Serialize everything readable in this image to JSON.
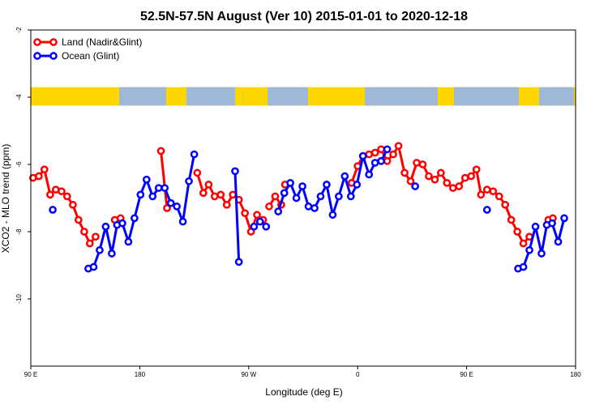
{
  "chart_data": {
    "type": "line",
    "title": "52.5N-57.5N August (Ver 10)   2015-01-01 to 2020-12-18",
    "xlabel": "Longitude (deg E)",
    "ylabel": "XCO2 - MLO trend (ppm)",
    "xlim": [
      90,
      450
    ],
    "ylim": [
      -12,
      -2
    ],
    "x_ticks": [
      {
        "value": 90,
        "label": "90 E"
      },
      {
        "value": 162,
        "label": "180"
      },
      {
        "value": 234,
        "label": "90 W"
      },
      {
        "value": 306,
        "label": "0"
      },
      {
        "value": 378,
        "label": "90 E"
      },
      {
        "value": 450,
        "label": "180"
      }
    ],
    "y_ticks": [
      {
        "value": -2,
        "label": "-2"
      },
      {
        "value": -4,
        "label": "-4"
      },
      {
        "value": -6,
        "label": "-6"
      },
      {
        "value": -8,
        "label": "-8"
      },
      {
        "value": -10,
        "label": "-10"
      }
    ],
    "grid": false,
    "legend_position": "top-left",
    "land_ocean_band": {
      "y_range": [
        -4.25,
        -3.7
      ],
      "land_color": "#ffd700",
      "ocean_color": "#a0b8d8"
    },
    "series": [
      {
        "name": "Land (Nadir&Glint)",
        "color": "#ff0000",
        "segments": [
          [
            [
              91.5,
              -6.4
            ],
            [
              95.3,
              -6.35
            ],
            [
              99,
              -6.15
            ],
            [
              102.8,
              -6.9
            ],
            [
              106.5,
              -6.75
            ],
            [
              110.3,
              -6.8
            ],
            [
              114,
              -6.95
            ],
            [
              117.8,
              -7.2
            ],
            [
              121.5,
              -7.65
            ],
            [
              125.3,
              -8.0
            ],
            [
              129,
              -8.35
            ],
            [
              132.8,
              -8.15
            ]
          ],
          [
            [
              145.5,
              -7.65
            ],
            [
              149.3,
              -7.6
            ]
          ],
          [
            [
              176,
              -5.6
            ],
            [
              180,
              -7.3
            ]
          ],
          [
            [
              200,
              -6.25
            ],
            [
              204,
              -6.85
            ],
            [
              207.5,
              -6.6
            ],
            [
              211.5,
              -6.95
            ],
            [
              215.5,
              -6.9
            ],
            [
              219.5,
              -7.2
            ],
            [
              223.5,
              -6.9
            ],
            [
              227.5,
              -7.05
            ],
            [
              231.5,
              -7.45
            ],
            [
              235.5,
              -8.0
            ],
            [
              239.5,
              -7.5
            ],
            [
              243.5,
              -7.65
            ]
          ],
          [
            [
              247.5,
              -7.25
            ],
            [
              251.5,
              -6.95
            ],
            [
              255.5,
              -7.2
            ]
          ],
          [
            [
              258,
              -6.6
            ]
          ],
          [
            [
              302,
              -6.55
            ],
            [
              306,
              -6.05
            ],
            [
              309.5,
              -5.75
            ],
            [
              313.5,
              -5.7
            ],
            [
              317.5,
              -5.65
            ],
            [
              321.5,
              -5.55
            ],
            [
              325.5,
              -5.9
            ],
            [
              329.5,
              -5.7
            ],
            [
              333,
              -5.45
            ],
            [
              337,
              -6.25
            ],
            [
              341,
              -6.5
            ],
            [
              345,
              -5.95
            ],
            [
              349,
              -6.0
            ],
            [
              353,
              -6.35
            ],
            [
              357,
              -6.45
            ],
            [
              361,
              -6.25
            ],
            [
              365,
              -6.55
            ],
            [
              369,
              -6.7
            ],
            [
              373,
              -6.65
            ],
            [
              377,
              -6.4
            ],
            [
              381,
              -6.35
            ],
            [
              384.5,
              -6.15
            ],
            [
              387.5,
              -6.9
            ],
            [
              391.5,
              -6.75
            ],
            [
              395.5,
              -6.8
            ],
            [
              399.5,
              -6.95
            ],
            [
              403.5,
              -7.2
            ],
            [
              407.5,
              -7.65
            ],
            [
              411.5,
              -8.0
            ],
            [
              415.5,
              -8.35
            ],
            [
              419.5,
              -8.15
            ]
          ],
          [
            [
              432,
              -7.65
            ],
            [
              435,
              -7.6
            ]
          ]
        ]
      },
      {
        "name": "Ocean (Glint)",
        "color": "#0000ff",
        "segments": [
          [
            [
              104.5,
              -7.35
            ]
          ],
          [
            [
              128,
              -9.1
            ],
            [
              131.5,
              -9.05
            ],
            [
              135.5,
              -8.55
            ],
            [
              139.5,
              -7.85
            ],
            [
              143.5,
              -8.65
            ],
            [
              147,
              -7.8
            ],
            [
              150.5,
              -7.75
            ],
            [
              154.5,
              -8.3
            ],
            [
              158.5,
              -7.6
            ],
            [
              162.5,
              -6.9
            ],
            [
              166.5,
              -6.45
            ],
            [
              170.5,
              -6.95
            ],
            [
              174.5,
              -6.7
            ],
            [
              178.5,
              -6.7
            ],
            [
              182.5,
              -7.15
            ],
            [
              186.5,
              -7.25
            ],
            [
              190.5,
              -7.7
            ],
            [
              194.5,
              -6.5
            ],
            [
              198,
              -5.7
            ]
          ],
          [
            [
              225,
              -6.2
            ],
            [
              227.5,
              -8.9
            ]
          ],
          [
            [
              237.5,
              -7.85
            ],
            [
              241.5,
              -7.7
            ],
            [
              245.5,
              -7.85
            ]
          ],
          [
            [
              253.5,
              -7.4
            ],
            [
              257.5,
              -6.85
            ],
            [
              261.5,
              -6.55
            ],
            [
              265.5,
              -7.0
            ],
            [
              269.5,
              -6.65
            ],
            [
              273.5,
              -7.25
            ],
            [
              277.5,
              -7.3
            ],
            [
              281.5,
              -6.95
            ],
            [
              285.5,
              -6.6
            ],
            [
              289.5,
              -7.5
            ],
            [
              293.5,
              -6.95
            ],
            [
              297.5,
              -6.35
            ],
            [
              301.5,
              -6.95
            ],
            [
              305.5,
              -6.6
            ],
            [
              309.5,
              -5.75
            ],
            [
              313.5,
              -6.3
            ],
            [
              317.5,
              -5.95
            ],
            [
              321.5,
              -5.9
            ],
            [
              325.5,
              -5.55
            ]
          ],
          [
            [
              344,
              -6.65
            ]
          ],
          [
            [
              391.5,
              -7.35
            ]
          ],
          [
            [
              412,
              -9.1
            ],
            [
              415.5,
              -9.05
            ],
            [
              419.5,
              -8.55
            ],
            [
              423.5,
              -7.85
            ],
            [
              427.5,
              -8.65
            ],
            [
              431,
              -7.8
            ],
            [
              434.5,
              -7.75
            ],
            [
              438.5,
              -8.3
            ],
            [
              442.5,
              -7.6
            ]
          ]
        ]
      }
    ]
  }
}
